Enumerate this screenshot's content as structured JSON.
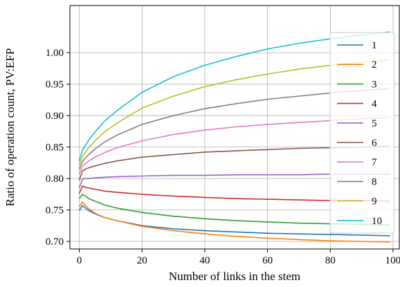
{
  "chart_data": {
    "type": "line",
    "title": "",
    "xlabel": "Number of links in the stem",
    "ylabel": "Ratio of operation count, PV:EFP",
    "xlim": [
      -3,
      102
    ],
    "ylim": [
      0.688,
      1.075
    ],
    "xticks": [
      0,
      20,
      40,
      60,
      80,
      100
    ],
    "xtick_labels": [
      "0",
      "20",
      "40",
      "60",
      "80",
      "100"
    ],
    "yticks": [
      0.7,
      0.75,
      0.8,
      0.85,
      0.9,
      0.95,
      1.0
    ],
    "ytick_labels": [
      "0.70",
      "0.75",
      "0.80",
      "0.85",
      "0.90",
      "0.95",
      "1.00"
    ],
    "grid": true,
    "legend_position": "right",
    "series": [
      {
        "name": "1",
        "color": "#1f77b4",
        "x": [
          0,
          1,
          2,
          3,
          5,
          8,
          12,
          20,
          30,
          40,
          50,
          60,
          70,
          80,
          90,
          99
        ],
        "y": [
          0.749,
          0.757,
          0.753,
          0.749,
          0.744,
          0.738,
          0.733,
          0.725,
          0.72,
          0.717,
          0.715,
          0.713,
          0.712,
          0.711,
          0.71,
          0.709
        ]
      },
      {
        "name": "2",
        "color": "#ff7f0e",
        "x": [
          0,
          1,
          2,
          3,
          5,
          8,
          12,
          20,
          30,
          40,
          50,
          60,
          70,
          80,
          90,
          99
        ],
        "y": [
          0.755,
          0.763,
          0.757,
          0.752,
          0.745,
          0.738,
          0.733,
          0.724,
          0.717,
          0.712,
          0.708,
          0.705,
          0.703,
          0.701,
          0.7,
          0.699
        ]
      },
      {
        "name": "3",
        "color": "#2ca02c",
        "x": [
          0,
          1,
          2,
          3,
          5,
          8,
          12,
          20,
          30,
          40,
          50,
          60,
          70,
          80,
          90,
          99
        ],
        "y": [
          0.768,
          0.775,
          0.772,
          0.768,
          0.764,
          0.758,
          0.753,
          0.746,
          0.74,
          0.736,
          0.733,
          0.731,
          0.729,
          0.728,
          0.727,
          0.726
        ]
      },
      {
        "name": "4",
        "color": "#d62728",
        "x": [
          0,
          1,
          2,
          3,
          5,
          8,
          12,
          20,
          30,
          40,
          50,
          60,
          70,
          80,
          90,
          99
        ],
        "y": [
          0.776,
          0.788,
          0.786,
          0.785,
          0.783,
          0.78,
          0.778,
          0.775,
          0.772,
          0.77,
          0.768,
          0.767,
          0.766,
          0.765,
          0.765,
          0.764
        ]
      },
      {
        "name": "5",
        "color": "#9467bd",
        "x": [
          0,
          1,
          2,
          3,
          5,
          8,
          12,
          20,
          30,
          40,
          50,
          60,
          70,
          80,
          90,
          99
        ],
        "y": [
          0.785,
          0.799,
          0.8,
          0.8,
          0.801,
          0.802,
          0.803,
          0.804,
          0.805,
          0.805,
          0.806,
          0.806,
          0.806,
          0.807,
          0.807,
          0.807
        ]
      },
      {
        "name": "6",
        "color": "#8c564b",
        "x": [
          0,
          1,
          2,
          3,
          5,
          8,
          12,
          20,
          30,
          40,
          50,
          60,
          70,
          80,
          90,
          99
        ],
        "y": [
          0.797,
          0.812,
          0.815,
          0.817,
          0.82,
          0.824,
          0.828,
          0.834,
          0.838,
          0.842,
          0.844,
          0.846,
          0.848,
          0.849,
          0.85,
          0.851
        ]
      },
      {
        "name": "7",
        "color": "#e377c2",
        "x": [
          0,
          1,
          2,
          3,
          5,
          8,
          12,
          20,
          30,
          40,
          50,
          60,
          70,
          80,
          90,
          99
        ],
        "y": [
          0.807,
          0.82,
          0.824,
          0.828,
          0.834,
          0.841,
          0.849,
          0.86,
          0.87,
          0.877,
          0.882,
          0.886,
          0.889,
          0.892,
          0.895,
          0.897
        ]
      },
      {
        "name": "8",
        "color": "#7f7f7f",
        "x": [
          0,
          1,
          2,
          3,
          5,
          8,
          12,
          20,
          30,
          40,
          50,
          60,
          70,
          80,
          90,
          99
        ],
        "y": [
          0.815,
          0.827,
          0.833,
          0.838,
          0.847,
          0.858,
          0.869,
          0.886,
          0.9,
          0.911,
          0.919,
          0.926,
          0.931,
          0.936,
          0.94,
          0.943
        ]
      },
      {
        "name": "9",
        "color": "#bcbd22",
        "x": [
          0,
          1,
          2,
          3,
          5,
          8,
          12,
          20,
          30,
          40,
          50,
          60,
          70,
          80,
          90,
          99
        ],
        "y": [
          0.822,
          0.835,
          0.842,
          0.849,
          0.86,
          0.874,
          0.888,
          0.912,
          0.931,
          0.946,
          0.957,
          0.966,
          0.974,
          0.98,
          0.985,
          0.988
        ]
      },
      {
        "name": "10",
        "color": "#17becf",
        "x": [
          0,
          1,
          2,
          3,
          5,
          8,
          12,
          20,
          30,
          40,
          50,
          60,
          70,
          80,
          90,
          99
        ],
        "y": [
          0.828,
          0.845,
          0.853,
          0.861,
          0.874,
          0.891,
          0.908,
          0.937,
          0.962,
          0.98,
          0.994,
          1.006,
          1.015,
          1.022,
          1.028,
          1.033
        ]
      }
    ]
  }
}
